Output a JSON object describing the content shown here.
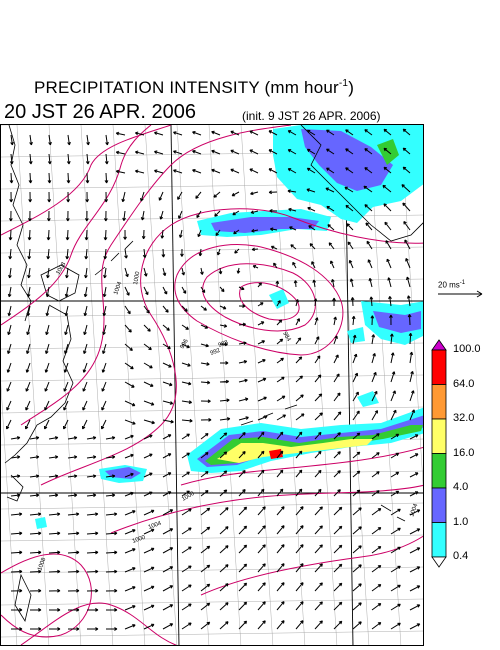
{
  "header": {
    "title": "PRECIPITATION INTENSITY (mm hour",
    "title_unit_exp": "-1",
    "title_close": ")",
    "valid_time": "20 JST 26 APR. 2006",
    "init_time": "(init. 9 JST 26 APR. 2006)"
  },
  "reference_vector": {
    "label": "20 ms",
    "label_exp": "-1"
  },
  "legend": {
    "levels": [
      {
        "label": "100.0",
        "color": "#cc00cc"
      },
      {
        "label": "64.0",
        "color": "#ff0000"
      },
      {
        "label": "32.0",
        "color": "#ff9933"
      },
      {
        "label": "16.0",
        "color": "#ffff66"
      },
      {
        "label": "4.0",
        "color": "#33cc33"
      },
      {
        "label": "1.0",
        "color": "#6666ff"
      },
      {
        "label": "0.4",
        "color": "#33ffff"
      }
    ],
    "bottom_color": "#ffffff"
  },
  "map": {
    "isobar_color": "#cc0066",
    "isobar_labels": [
      "1008",
      "1004",
      "1000",
      "996",
      "992",
      "988",
      "984",
      "1000",
      "1004",
      "1008",
      "1000",
      "1004"
    ],
    "coastline_color": "#000000",
    "grid_color": "#999999",
    "precip_colors": {
      "light": "#33ffff",
      "moderate": "#6666ff",
      "heavy": "#33cc33",
      "intense": "#ffff66",
      "extreme": "#ff0000"
    }
  }
}
